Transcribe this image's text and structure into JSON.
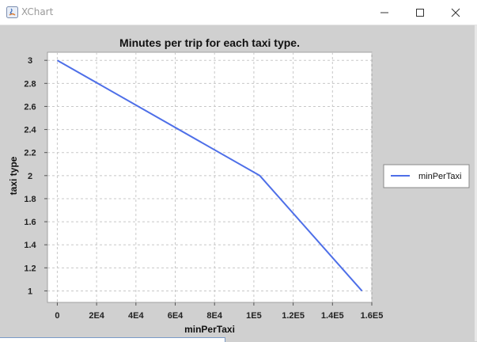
{
  "window": {
    "title": "XChart",
    "icon": "java-app-icon",
    "controls": [
      "minimize-icon",
      "maximize-icon",
      "close-icon"
    ]
  },
  "colors": {
    "background": "#d0d0d0",
    "plot_background": "#ffffff",
    "series": "#4e6fe8",
    "grid": "#c8c8c8"
  },
  "chart_data": {
    "type": "line",
    "title": "Minutes per trip for each taxi type.",
    "xlabel": "minPerTaxi",
    "ylabel": "taxi type",
    "xlim": [
      -5000,
      160000
    ],
    "ylim": [
      0.9,
      3.07
    ],
    "x_ticks": [
      0,
      20000,
      40000,
      60000,
      80000,
      100000,
      120000,
      140000,
      160000
    ],
    "x_tick_labels": [
      "0",
      "2E4",
      "4E4",
      "6E4",
      "8E4",
      "1E5",
      "1.2E5",
      "1.4E5",
      "1.6E5"
    ],
    "y_ticks": [
      1,
      1.2,
      1.4,
      1.6,
      1.8,
      2,
      2.2,
      2.4,
      2.6,
      2.8,
      3
    ],
    "y_tick_labels": [
      "1",
      "1.2",
      "1.4",
      "1.6",
      "1.8",
      "2",
      "2.2",
      "2.4",
      "2.6",
      "2.8",
      "3"
    ],
    "grid": true,
    "legend_position": "outside-right",
    "series": [
      {
        "name": "minPerTaxi",
        "x": [
          0,
          103000,
          155000
        ],
        "y": [
          3,
          2,
          1
        ],
        "color": "#4e6fe8"
      }
    ]
  }
}
